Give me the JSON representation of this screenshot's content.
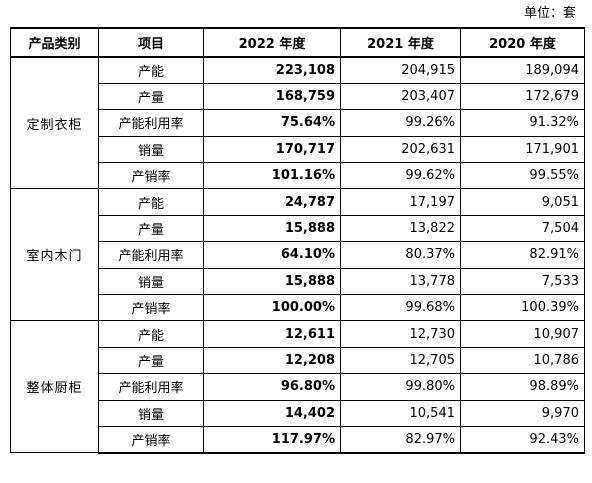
{
  "unit_label": "单位：套",
  "header": {
    "category": "产品类别",
    "item": "项目",
    "y2022": "2022 年度",
    "y2021": "2021 年度",
    "y2020": "2020 年度"
  },
  "groups": [
    {
      "category": "定制衣柜",
      "rows": [
        {
          "item": "产能",
          "y2022": "223,108",
          "y2021": "204,915",
          "y2020": "189,094"
        },
        {
          "item": "产量",
          "y2022": "168,759",
          "y2021": "203,407",
          "y2020": "172,679"
        },
        {
          "item": "产能利用率",
          "y2022": "75.64%",
          "y2021": "99.26%",
          "y2020": "91.32%"
        },
        {
          "item": "销量",
          "y2022": "170,717",
          "y2021": "202,631",
          "y2020": "171,901"
        },
        {
          "item": "产销率",
          "y2022": "101.16%",
          "y2021": "99.62%",
          "y2020": "99.55%"
        }
      ]
    },
    {
      "category": "室内木门",
      "rows": [
        {
          "item": "产能",
          "y2022": "24,787",
          "y2021": "17,197",
          "y2020": "9,051"
        },
        {
          "item": "产量",
          "y2022": "15,888",
          "y2021": "13,822",
          "y2020": "7,504"
        },
        {
          "item": "产能利用率",
          "y2022": "64.10%",
          "y2021": "80.37%",
          "y2020": "82.91%"
        },
        {
          "item": "销量",
          "y2022": "15,888",
          "y2021": "13,778",
          "y2020": "7,533"
        },
        {
          "item": "产销率",
          "y2022": "100.00%",
          "y2021": "99.68%",
          "y2020": "100.39%"
        }
      ]
    },
    {
      "category": "整体厨柜",
      "rows": [
        {
          "item": "产能",
          "y2022": "12,611",
          "y2021": "12,730",
          "y2020": "10,907"
        },
        {
          "item": "产量",
          "y2022": "12,208",
          "y2021": "12,705",
          "y2020": "10,786"
        },
        {
          "item": "产能利用率",
          "y2022": "96.80%",
          "y2021": "99.80%",
          "y2020": "98.89%"
        },
        {
          "item": "销量",
          "y2022": "14,402",
          "y2021": "10,541",
          "y2020": "9,970"
        },
        {
          "item": "产销率",
          "y2022": "117.97%",
          "y2021": "82.97%",
          "y2020": "92.43%"
        }
      ]
    }
  ]
}
